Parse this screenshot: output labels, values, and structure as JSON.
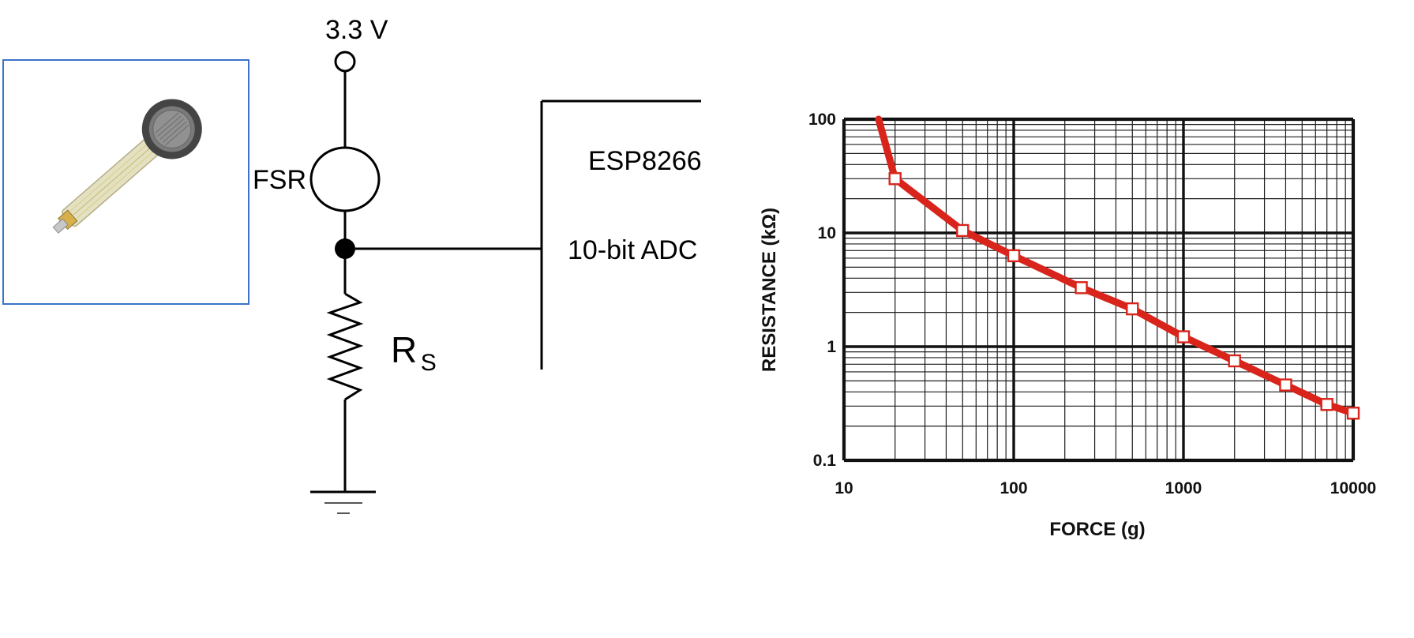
{
  "circuit": {
    "supply_label": "3.3 V",
    "fsr_label": "FSR",
    "mcu_name": "ESP8266",
    "adc_label": "10-bit ADC",
    "resistor_label_main": "R",
    "resistor_label_sub": "S"
  },
  "photo": {
    "subject": "fsr-sensor-icon",
    "frame_color": "#3b73c8"
  },
  "chart_data": {
    "type": "line",
    "title": "",
    "xlabel": "FORCE (g)",
    "ylabel": "RESISTANCE (kΩ)",
    "x_scale": "log",
    "y_scale": "log",
    "xlim": [
      10,
      10000
    ],
    "ylim": [
      0.1,
      100
    ],
    "x_ticks": [
      "10",
      "100",
      "1000",
      "10000"
    ],
    "y_ticks": [
      "100",
      "10",
      "1",
      "0.1"
    ],
    "grid": true,
    "line_color": "#d9241b",
    "marker": "square",
    "series": [
      {
        "points": [
          [
            16,
            100
          ],
          [
            20,
            30
          ],
          [
            50,
            10.5
          ],
          [
            100,
            6.3
          ],
          [
            250,
            3.3
          ],
          [
            500,
            2.15
          ],
          [
            1000,
            1.22
          ],
          [
            2000,
            0.75
          ],
          [
            4000,
            0.46
          ],
          [
            7000,
            0.31
          ],
          [
            10000,
            0.26
          ]
        ],
        "marker_start_index": 1
      }
    ]
  }
}
